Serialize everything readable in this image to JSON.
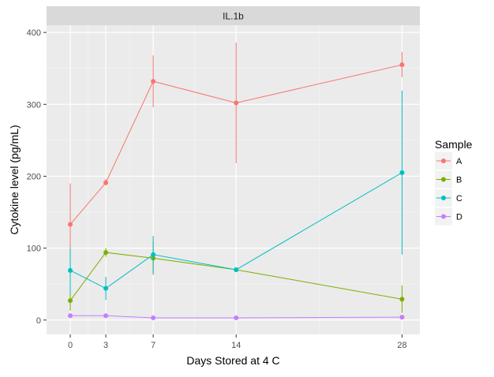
{
  "chart_data": {
    "type": "line",
    "facet_title": "IL.1b",
    "xlabel": "Days Stored at 4 C",
    "ylabel": "Cytokine level (pg/mL)",
    "x_ticks": [
      0,
      3,
      7,
      14,
      28
    ],
    "x_tick_labels": [
      "0",
      "3",
      "7",
      "14",
      "28"
    ],
    "y_ticks": [
      0,
      100,
      200,
      300,
      400
    ],
    "y_tick_labels": [
      "0",
      "100",
      "200",
      "300",
      "400"
    ],
    "xlim": [
      -2,
      29.5
    ],
    "ylim": [
      -20,
      410
    ],
    "grid": true,
    "legend_title": "Sample",
    "legend_position": "right",
    "series": [
      {
        "name": "A",
        "color": "#F8766D",
        "points": [
          {
            "x": 0,
            "y": 133,
            "ymin": 77,
            "ymax": 190
          },
          {
            "x": 3,
            "y": 191,
            "ymin": 187,
            "ymax": 196
          },
          {
            "x": 7,
            "y": 332,
            "ymin": 296,
            "ymax": 368
          },
          {
            "x": 14,
            "y": 302,
            "ymin": 218,
            "ymax": 386
          },
          {
            "x": 28,
            "y": 355,
            "ymin": 338,
            "ymax": 373
          }
        ]
      },
      {
        "name": "B",
        "color": "#7CAE00",
        "points": [
          {
            "x": 0,
            "y": 27,
            "ymin": 13,
            "ymax": 40
          },
          {
            "x": 3,
            "y": 94,
            "ymin": 88,
            "ymax": 100
          },
          {
            "x": 7,
            "y": 86,
            "ymin": 63,
            "ymax": 109
          },
          {
            "x": 14,
            "y": 70,
            "ymin": 68,
            "ymax": 72
          },
          {
            "x": 28,
            "y": 29,
            "ymin": 10,
            "ymax": 48
          }
        ]
      },
      {
        "name": "C",
        "color": "#00BFC4",
        "points": [
          {
            "x": 0,
            "y": 69,
            "ymin": 37,
            "ymax": 101
          },
          {
            "x": 3,
            "y": 44,
            "ymin": 28,
            "ymax": 60
          },
          {
            "x": 7,
            "y": 91,
            "ymin": 65,
            "ymax": 117
          },
          {
            "x": 14,
            "y": 70,
            "ymin": 68,
            "ymax": 72
          },
          {
            "x": 28,
            "y": 205,
            "ymin": 91,
            "ymax": 319
          }
        ]
      },
      {
        "name": "D",
        "color": "#C77CFF",
        "points": [
          {
            "x": 0,
            "y": 6,
            "ymin": 5,
            "ymax": 7
          },
          {
            "x": 3,
            "y": 6,
            "ymin": 5,
            "ymax": 7
          },
          {
            "x": 7,
            "y": 3,
            "ymin": 2,
            "ymax": 4
          },
          {
            "x": 14,
            "y": 3,
            "ymin": 2,
            "ymax": 4
          },
          {
            "x": 28,
            "y": 4,
            "ymin": 3,
            "ymax": 5
          }
        ]
      }
    ]
  }
}
